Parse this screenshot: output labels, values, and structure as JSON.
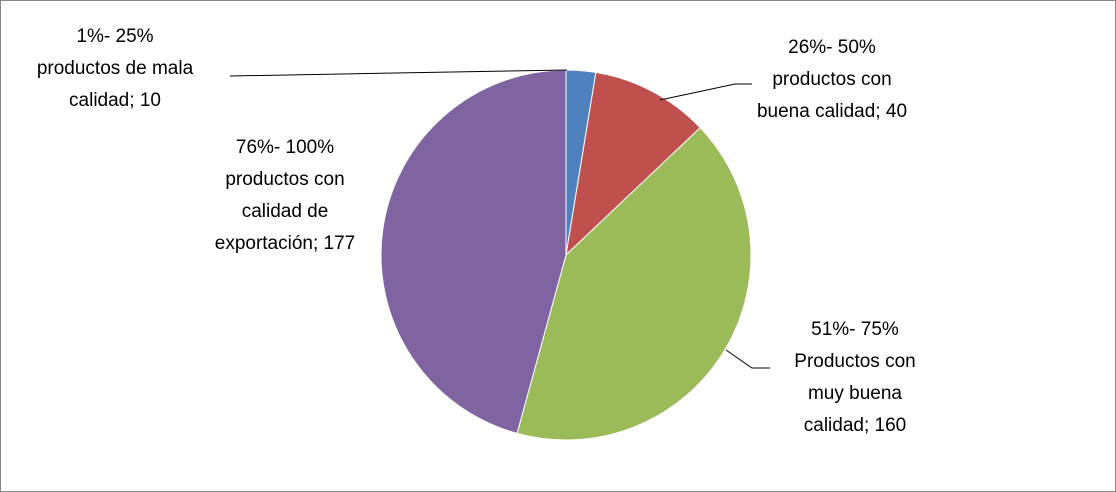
{
  "chart_data": {
    "type": "pie",
    "categories": [
      "1%- 25% productos de mala calidad",
      "26%- 50% productos con buena calidad",
      "51%- 75% Productos con muy buena calidad",
      "76%- 100% productos con calidad de exportación"
    ],
    "values": [
      10,
      40,
      160,
      177
    ],
    "colors": [
      "#4f81bd",
      "#c0504d",
      "#9bbb59",
      "#8064a2"
    ],
    "label_separator": "; "
  }
}
